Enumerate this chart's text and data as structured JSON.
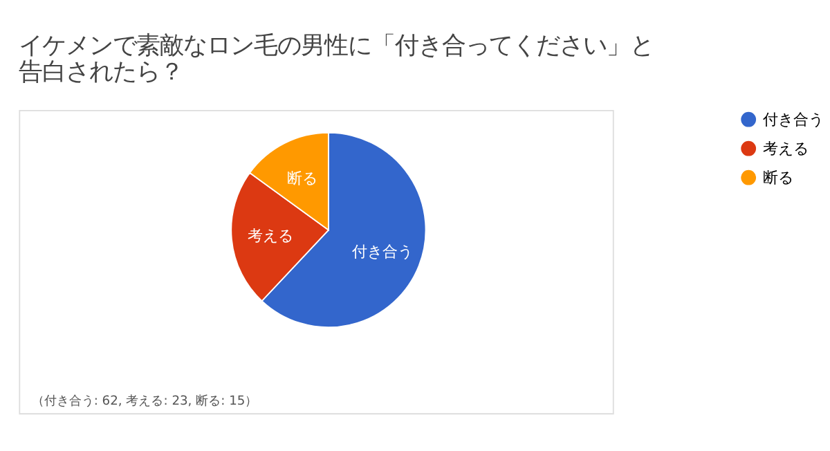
{
  "chart_data": {
    "type": "pie",
    "title": "イケメンで素敵なロン毛の男性に「付き合ってください」と告白されたら？",
    "categories": [
      "付き合う",
      "考える",
      "断る"
    ],
    "values": [
      62,
      23,
      15
    ],
    "colors": [
      "#3366cc",
      "#dc3912",
      "#ff9900"
    ],
    "legend": "right",
    "annotations": [
      "（付き合う: 62, 考える: 23, 断る: 15）"
    ]
  }
}
